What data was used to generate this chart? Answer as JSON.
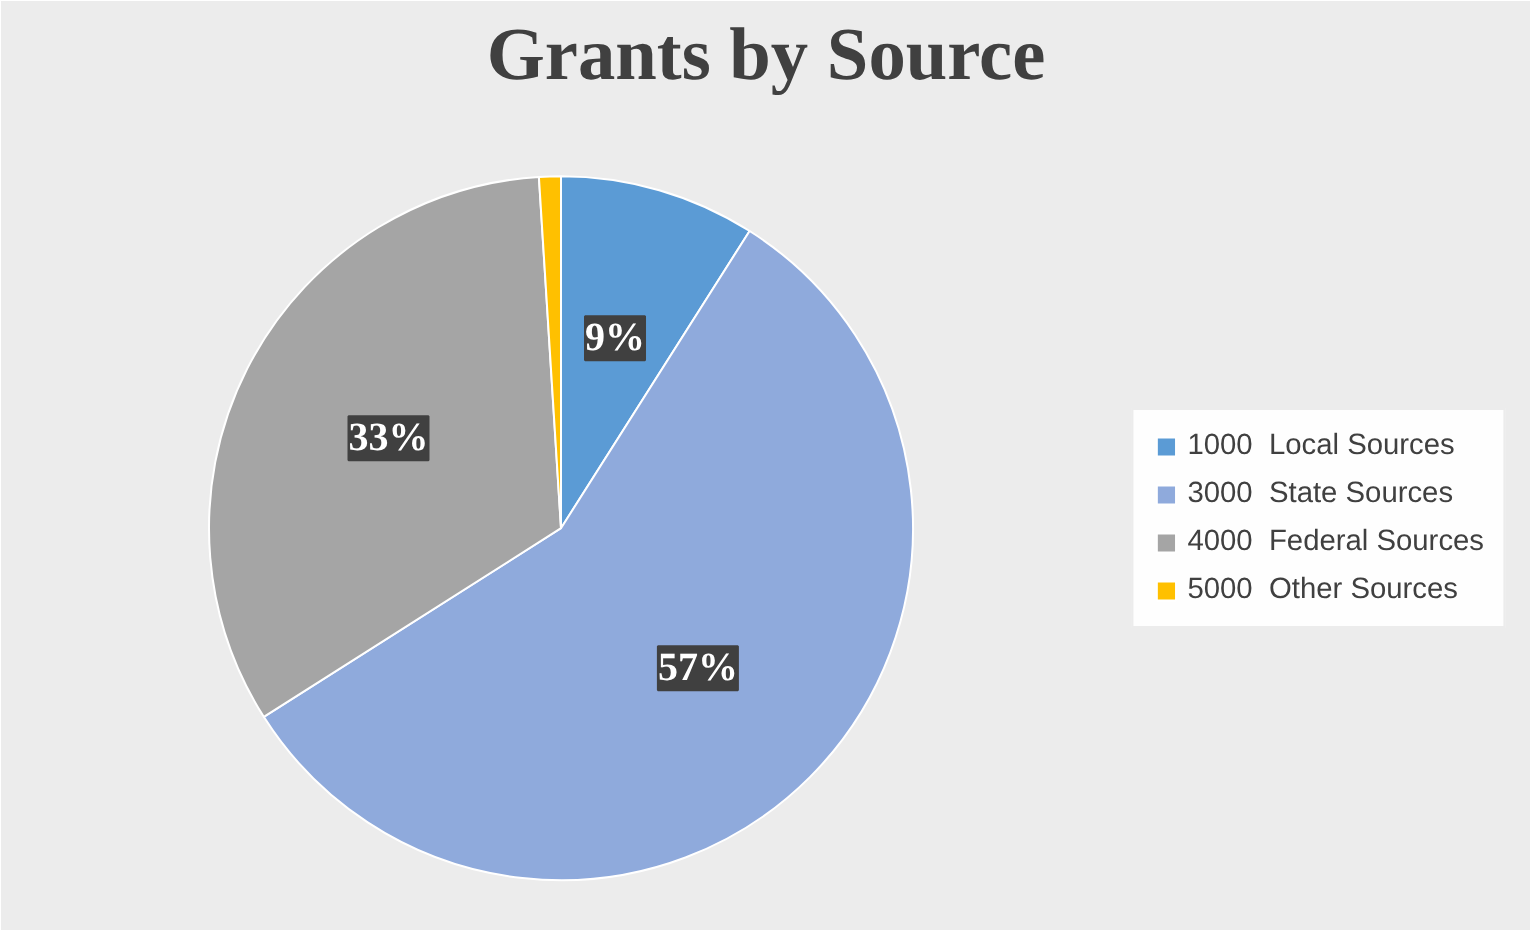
{
  "chart_data": {
    "type": "pie",
    "title": "Grants by Source",
    "categories": [
      "1000  Local Sources",
      "3000  State Sources",
      "4000  Federal Sources",
      "5000  Other Sources"
    ],
    "values": [
      9,
      57,
      33,
      1
    ],
    "colors": [
      "#5b9bd5",
      "#8faadc",
      "#a5a5a5",
      "#ffc000"
    ],
    "value_labels": [
      "9%",
      "57%",
      "33%",
      null
    ],
    "legend": "right"
  }
}
